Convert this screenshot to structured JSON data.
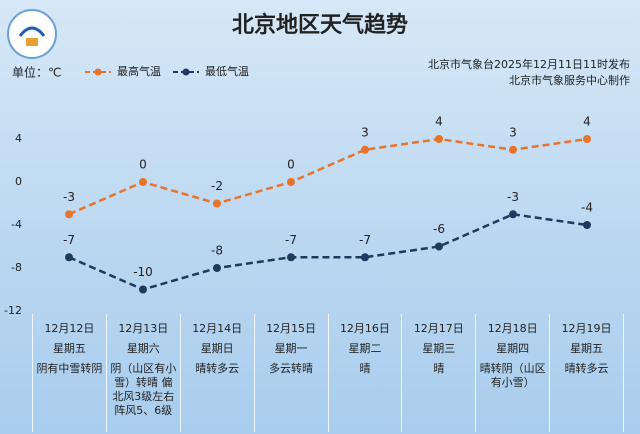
{
  "chart_data": {
    "type": "line",
    "title": "北京地区天气趋势",
    "unit_label": "单位：℃",
    "notes": [
      "北京市气象台2025年12月11日11时发布",
      "北京市气象服务中心制作"
    ],
    "categories": [
      "12月12日",
      "12月13日",
      "12月14日",
      "12月15日",
      "12月16日",
      "12月17日",
      "12月18日",
      "12月19日"
    ],
    "weekdays": [
      "星期五",
      "星期六",
      "星期日",
      "星期一",
      "星期二",
      "星期三",
      "星期四",
      "星期五"
    ],
    "weather": [
      "阴有中雪转阴",
      "阴（山区有小雪）转晴 偏北风3级左右 阵风5、6级",
      "晴转多云",
      "多云转晴",
      "晴",
      "晴",
      "晴转阴（山区有小雪）",
      "晴转多云"
    ],
    "series": [
      {
        "name": "最高气温",
        "color": "#e8732a",
        "values": [
          -3,
          0,
          -2,
          0,
          3,
          4,
          3,
          4
        ]
      },
      {
        "name": "最低气温",
        "color": "#1f3a5f",
        "values": [
          -7,
          -10,
          -8,
          -7,
          -7,
          -6,
          -3,
          -4
        ]
      }
    ],
    "ylim": [
      -12,
      6
    ],
    "yticks": [
      -12,
      -8,
      -4,
      0,
      4
    ],
    "grid": false
  }
}
